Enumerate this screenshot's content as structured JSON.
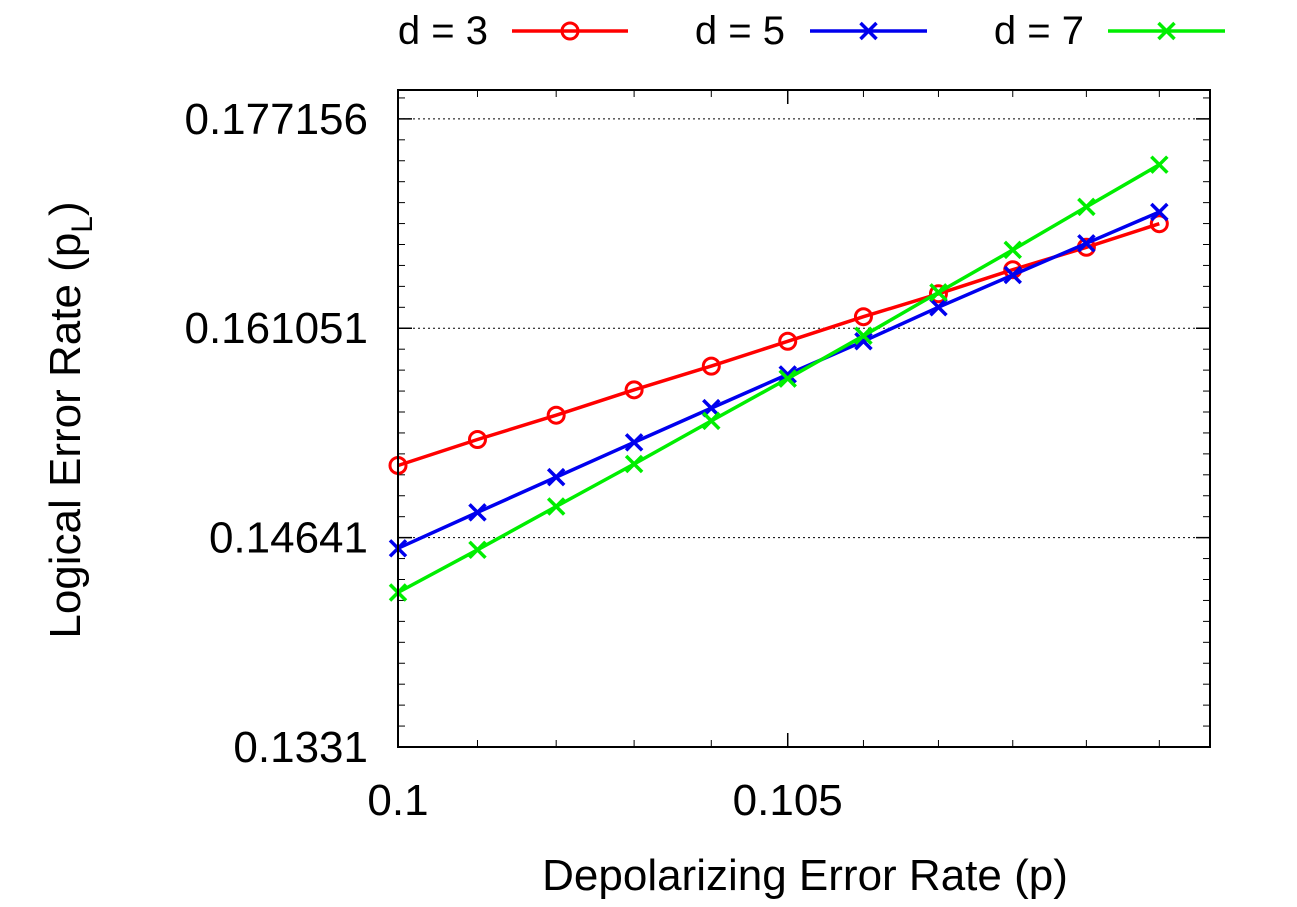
{
  "chart_data": {
    "type": "line",
    "title": "",
    "xlabel": "Depolarizing Error Rate (p)",
    "ylabel": "Logical Error Rate (p",
    "ylabel_subscript": "L",
    "ylabel_close": ")",
    "x_scale": "log",
    "y_scale": "log",
    "xlim": [
      0.1,
      0.1107
    ],
    "ylim": [
      0.1331,
      0.1795
    ],
    "x_ticks": [
      0.1,
      0.105
    ],
    "x_tick_labels": [
      "0.1",
      "0.105"
    ],
    "y_ticks": [
      0.1331,
      0.14641,
      0.161051,
      0.177156
    ],
    "y_tick_labels": [
      "0.1331",
      "0.14641",
      "0.161051",
      "0.177156"
    ],
    "grid": "horizontal-dotted",
    "legend_position": "top",
    "x": [
      0.1,
      0.101,
      0.102,
      0.103,
      0.104,
      0.105,
      0.106,
      0.107,
      0.108,
      0.109,
      0.11
    ],
    "series": [
      {
        "name": "d = 3",
        "color": "#ff0000",
        "marker": "circle",
        "values": [
          0.1513,
          0.1531,
          0.1548,
          0.1566,
          0.1583,
          0.1601,
          0.1619,
          0.1636,
          0.1654,
          0.1671,
          0.1689
        ]
      },
      {
        "name": "d = 5",
        "color": "#0000ee",
        "marker": "x",
        "values": [
          0.1457,
          0.1481,
          0.1505,
          0.1529,
          0.1553,
          0.1577,
          0.1601,
          0.1626,
          0.165,
          0.1674,
          0.1698
        ]
      },
      {
        "name": "d = 7",
        "color": "#00ee00",
        "marker": "x",
        "values": [
          0.1428,
          0.1456,
          0.1485,
          0.1514,
          0.1544,
          0.1574,
          0.1605,
          0.1637,
          0.1669,
          0.1702,
          0.1735
        ]
      }
    ]
  }
}
